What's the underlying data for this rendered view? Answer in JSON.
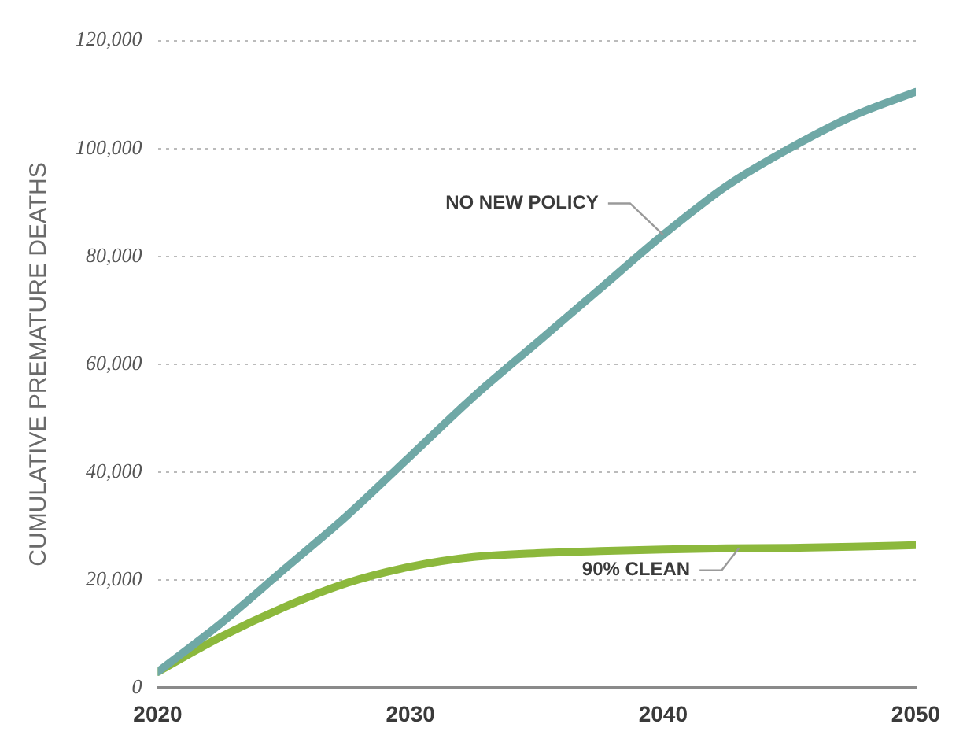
{
  "chart_data": {
    "type": "line",
    "ylabel": "CUMULATIVE PREMATURE DEATHS",
    "x": [
      2020,
      2022.5,
      2025,
      2027.5,
      2030,
      2032.5,
      2035,
      2037.5,
      2040,
      2042.5,
      2045,
      2047.5,
      2050
    ],
    "series": [
      {
        "color": "#6fa8a6",
        "values": [
          3000,
          12000,
          22000,
          32000,
          43000,
          54000,
          64000,
          74000,
          84000,
          93000,
          100000,
          106000,
          110500
        ]
      },
      {
        "color": "#8cb83c",
        "values": [
          3000,
          9500,
          15000,
          19500,
          22500,
          24300,
          25000,
          25400,
          25700,
          25900,
          26000,
          26200,
          26500
        ]
      }
    ],
    "annotations": [
      {
        "text": "NO NEW POLICY",
        "x": 2040,
        "y": 84000
      },
      {
        "text": "90% CLEAN",
        "x": 2043,
        "y": 25900
      }
    ],
    "xlim": [
      2020,
      2050
    ],
    "xticks": [
      2020,
      2030,
      2040,
      2050
    ],
    "ylim": [
      0,
      120000
    ],
    "yticks": [
      0,
      {
        "value": 20000,
        "label": "20,000"
      },
      {
        "value": 40000,
        "label": "40,000"
      },
      {
        "value": 60000,
        "label": "60,000"
      },
      {
        "value": 80000,
        "label": "80,000"
      },
      {
        "value": 100000,
        "label": "100,000"
      },
      {
        "value": 120000,
        "label": "120,000"
      }
    ],
    "grid": "y",
    "legend": false,
    "marker": "none",
    "line_style": "solid"
  }
}
